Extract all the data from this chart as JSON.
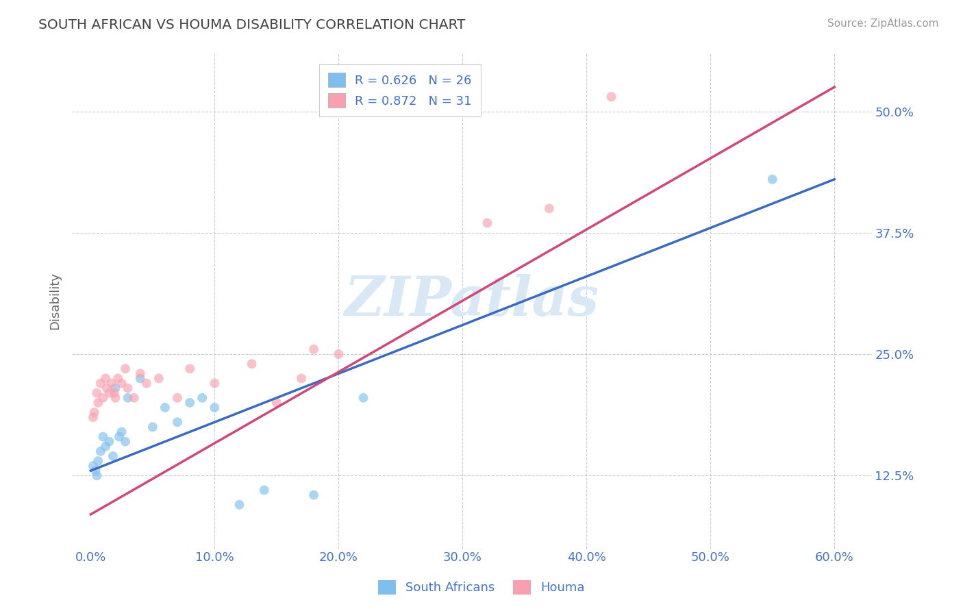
{
  "title": "SOUTH AFRICAN VS HOUMA DISABILITY CORRELATION CHART",
  "source": "Source: ZipAtlas.com",
  "xlabel_ticks": [
    0.0,
    10.0,
    20.0,
    30.0,
    40.0,
    50.0,
    60.0
  ],
  "ylabel_ticks": [
    12.5,
    25.0,
    37.5,
    50.0
  ],
  "xlim": [
    -1.5,
    63.0
  ],
  "ylim": [
    5.0,
    56.0
  ],
  "ylabel": "Disability",
  "legend_bottom_labels": [
    "South Africans",
    "Houma"
  ],
  "blue_R": 0.626,
  "blue_N": 26,
  "pink_R": 0.872,
  "pink_N": 31,
  "blue_color": "#7fbfed",
  "pink_color": "#f8a0b0",
  "blue_line_color": "#3a6bbf",
  "pink_line_color": "#d04878",
  "scatter_alpha": 0.65,
  "scatter_size": 100,
  "watermark": "ZIPatlas",
  "blue_scatter_x": [
    0.2,
    0.4,
    0.5,
    0.6,
    0.8,
    1.0,
    1.2,
    1.5,
    1.8,
    2.0,
    2.3,
    2.5,
    2.8,
    3.0,
    4.0,
    5.0,
    6.0,
    7.0,
    8.0,
    9.0,
    10.0,
    12.0,
    14.0,
    18.0,
    22.0,
    55.0
  ],
  "blue_scatter_y": [
    13.5,
    13.0,
    12.5,
    14.0,
    15.0,
    16.5,
    15.5,
    16.0,
    14.5,
    21.5,
    16.5,
    17.0,
    16.0,
    20.5,
    22.5,
    17.5,
    19.5,
    18.0,
    20.0,
    20.5,
    19.5,
    9.5,
    11.0,
    10.5,
    20.5,
    43.0
  ],
  "pink_scatter_x": [
    0.2,
    0.3,
    0.5,
    0.6,
    0.8,
    1.0,
    1.2,
    1.3,
    1.5,
    1.7,
    1.9,
    2.0,
    2.2,
    2.5,
    2.8,
    3.0,
    3.5,
    4.0,
    4.5,
    5.5,
    7.0,
    8.0,
    10.0,
    13.0,
    15.0,
    17.0,
    18.0,
    20.0,
    32.0,
    37.0,
    42.0
  ],
  "pink_scatter_y": [
    18.5,
    19.0,
    21.0,
    20.0,
    22.0,
    20.5,
    22.5,
    21.5,
    21.0,
    22.0,
    21.0,
    20.5,
    22.5,
    22.0,
    23.5,
    21.5,
    20.5,
    23.0,
    22.0,
    22.5,
    20.5,
    23.5,
    22.0,
    24.0,
    20.0,
    22.5,
    25.5,
    25.0,
    38.5,
    40.0,
    51.5
  ],
  "blue_line_x": [
    0.0,
    60.0
  ],
  "blue_line_y": [
    13.0,
    43.0
  ],
  "pink_line_x": [
    0.0,
    60.0
  ],
  "pink_line_y": [
    8.5,
    52.5
  ],
  "grid_color": "#cccccc",
  "bg_color": "#ffffff",
  "title_color": "#444444",
  "axis_label_color": "#666666",
  "tick_color": "#4472c4",
  "watermark_color": "#d8e8f5",
  "legend_text_color": "#4472c4"
}
